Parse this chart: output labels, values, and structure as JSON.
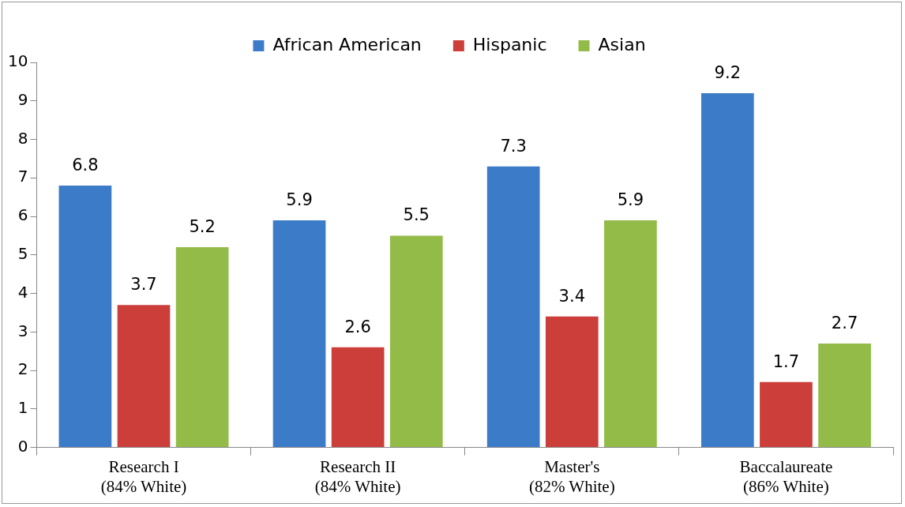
{
  "chart_data": {
    "type": "bar",
    "categories": [
      "Research I\n(84% White)",
      "Research II\n(84% White)",
      "Master's\n(82% White)",
      "Baccalaureate\n(86% White)"
    ],
    "series": [
      {
        "name": "African American",
        "color": "#3c7bc8",
        "values": [
          6.8,
          5.9,
          7.3,
          9.2
        ]
      },
      {
        "name": "Hispanic",
        "color": "#cc3e3a",
        "values": [
          3.7,
          2.6,
          3.4,
          1.7
        ]
      },
      {
        "name": "Asian",
        "color": "#93bb48",
        "values": [
          5.2,
          5.5,
          5.9,
          2.7
        ]
      }
    ],
    "ylim": [
      0,
      10
    ],
    "yticks": [
      0,
      1,
      2,
      3,
      4,
      5,
      6,
      7,
      8,
      9,
      10
    ],
    "grid": false,
    "legend": "top",
    "data_labels": true
  }
}
